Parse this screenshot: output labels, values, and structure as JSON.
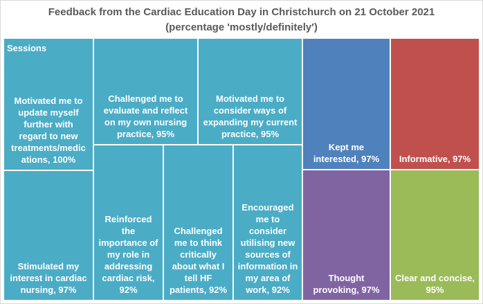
{
  "chart_data": {
    "type": "treemap",
    "title_line1": "Feedback from the Cardiac Education Day in Christchurch on 21 October 2021",
    "title_line2": "(percentage 'mostly/definitely')",
    "group_label": "Sessions",
    "items": [
      {
        "label": "Motivated me to update myself further with regard to new treatments/medications",
        "value": 100,
        "text": "Motivated me to\nupdate myself\nfurther with\nregard to new\ntreatments/medic\nations, 100%",
        "color": "#4bacc6"
      },
      {
        "label": "Challenged me to evaluate and reflect on my own nursing practice",
        "value": 95,
        "text": "Challenged me to\nevaluate and reflect\non my own nursing\npractice, 95%",
        "color": "#4bacc6"
      },
      {
        "label": "Motivated me to consider ways of expanding my current practice",
        "value": 95,
        "text": "Motivated me to\nconsider ways of\nexpanding my current\npractice, 95%",
        "color": "#4bacc6"
      },
      {
        "label": "Stimulated my interest in cardiac nursing",
        "value": 97,
        "text": "Stimulated my\ninterest in cardiac\nnursing, 97%",
        "color": "#4bacc6"
      },
      {
        "label": "Reinforced the importance of my role in addressing cardiac risk",
        "value": 92,
        "text": "Reinforced\nthe\nimportance of\nmy role in\naddressing\ncardiac risk,\n92%",
        "color": "#4bacc6"
      },
      {
        "label": "Challenged me to think critically about what I tell HF patients",
        "value": 92,
        "text": "Challenged\nme to think\ncritically\nabout what I\ntell HF\npatients, 92%",
        "color": "#4bacc6"
      },
      {
        "label": "Encouraged me to consider utilising new sources of information in my area of work",
        "value": 92,
        "text": "Encouraged\nme to\nconsider\nutilising new\nsources of\ninformation in\nmy area of\nwork, 92%",
        "color": "#4bacc6"
      },
      {
        "label": "Kept me interested",
        "value": 97,
        "text": "Kept me\ninterested, 97%",
        "color": "#4f81bd"
      },
      {
        "label": "Informative",
        "value": 97,
        "text": "Informative, 97%",
        "color": "#c0504d"
      },
      {
        "label": "Thought provoking",
        "value": 97,
        "text": "Thought\nprovoking, 97%",
        "color": "#8064a2"
      },
      {
        "label": "Clear and concise",
        "value": 95,
        "text": "Clear and concise,\n95%",
        "color": "#9bbb59"
      }
    ]
  }
}
